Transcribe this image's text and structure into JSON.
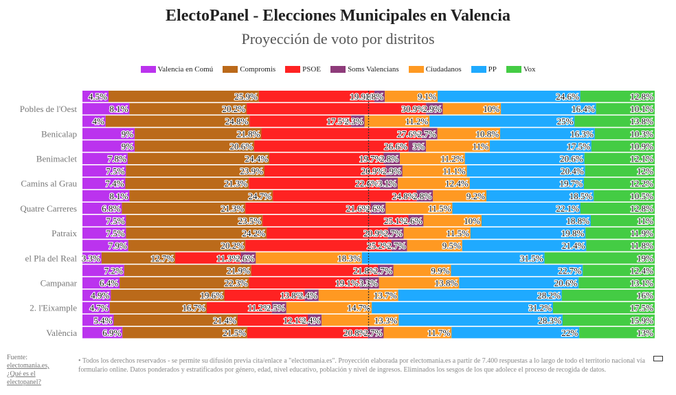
{
  "title": "ElectoPanel - Elecciones Municipales en Valencia",
  "subtitle": "Proyección de voto por distritos",
  "footer": {
    "source_label": "Fuente:",
    "source_link": "electomania.es,",
    "what_link": "¿Qué es el electopanel?",
    "note": "• Todos los derechos reservados - se permite su difusión previa cita/enlace a \"electomania.es\". Proyección elaborada por electomania.es a partir de 7.400 respuestas a lo largo de todo el territorio nacional vía formulario online. Datos ponderados y estratificados por género, edad, nivel educativo, población y nivel de ingresos. Eliminados los sesgos de los que adolece el proceso de recogida de datos."
  },
  "chart_data": {
    "type": "bar",
    "orientation": "horizontal",
    "stacked": true,
    "title": "ElectoPanel - Elecciones Municipales en Valencia",
    "subtitle": "Proyección de voto por distritos",
    "xlim": [
      0,
      100
    ],
    "legend_position": "top",
    "reference_line": {
      "x": 50,
      "style": "dotted"
    },
    "y_tick_labels": [
      "Pobles de l'Oest",
      "Benicalap",
      "Benimaclet",
      "Camins al Grau",
      "Quatre Carreres",
      "Patraix",
      "el Pla del Real",
      "Campanar",
      "2. l'Eixample",
      "València"
    ],
    "rows": [
      "",
      "Pobles de l'Oest",
      "",
      "Benicalap",
      "",
      "Benimaclet",
      "",
      "Camins al Grau",
      "",
      "Quatre Carreres",
      "",
      "Patraix",
      "",
      "el Pla del Real",
      "",
      "Campanar",
      "",
      "2. l'Eixample",
      "",
      "València"
    ],
    "series": [
      {
        "name": "Valencia en Comú",
        "color": "#bb33ee",
        "values": [
          4.5,
          8.1,
          4,
          9,
          9,
          7.8,
          7.5,
          7.4,
          8.1,
          6.8,
          7.5,
          7.5,
          7.9,
          3.3,
          7.2,
          6.4,
          4.9,
          4.7,
          5.4,
          6.9
        ],
        "labels": [
          "4.5%",
          "8.1%",
          "4%",
          "9%",
          "9%",
          "7.8%",
          "7.5%",
          "7.4%",
          "8.1%",
          "6.8%",
          "7.5%",
          "7.5%",
          "7.9%",
          "3.3%",
          "7.2%",
          "6.4%",
          "4.9%",
          "4.7%",
          "5.4%",
          "6.9%"
        ]
      },
      {
        "name": "Compromis",
        "color": "#bb6a1a",
        "values": [
          25.9,
          20.2,
          24.8,
          21.8,
          20.6,
          24.4,
          23.9,
          21.3,
          24.7,
          21.3,
          23.5,
          24.2,
          20.2,
          12.7,
          21.9,
          22.3,
          19.6,
          16.7,
          21.4,
          21.5
        ],
        "labels": [
          "25.9%",
          "20.2%",
          "24.8%",
          "21.8%",
          "20.6%",
          "24.4%",
          "23.9%",
          "21.3%",
          "24.7%",
          "21.3%",
          "23.5%",
          "24.2%",
          "20.2%",
          "12.7%",
          "21.9%",
          "22.3%",
          "19.6%",
          "16.7%",
          "21.4%",
          "21.5%"
        ]
      },
      {
        "name": "PSOE",
        "color": "#ff2222",
        "values": [
          19.9,
          30.9,
          17.5,
          27.6,
          26.6,
          19.7,
          20.9,
          22.6,
          24.8,
          21.6,
          25.1,
          20.9,
          25.2,
          11.3,
          21.8,
          19.1,
          13.8,
          11.2,
          12.1,
          20.8
        ],
        "labels": [
          "19.9%",
          "30.9%",
          "17.5%",
          "27.6%",
          "26.6%",
          "19.7%",
          "20.9%",
          "22.6%",
          "24.8%",
          "21.6%",
          "25.1%",
          "20.9%",
          "25.2%",
          "11.3%",
          "21.8%",
          "19.1%",
          "13.8%",
          "11.2%",
          "12.1%",
          "20.8%"
        ]
      },
      {
        "name": "Soms Valencians",
        "color": "#8e3b7a",
        "values": [
          1.8,
          2.9,
          2.3,
          2.7,
          3,
          2.8,
          2.9,
          3.1,
          2.8,
          2.6,
          2.6,
          2.7,
          2.7,
          2.6,
          2.7,
          3.3,
          2.4,
          2.5,
          2.4,
          2.7
        ],
        "labels": [
          "1.8%",
          "2.9%",
          "2.3%",
          "2.7%",
          "3%",
          "2.8%",
          "2.9%",
          "3.1%",
          "2.8%",
          "2.6%",
          "2.6%",
          "2.7%",
          "2.7%",
          "2.6%",
          "2.7%",
          "3.3%",
          "2.4%",
          "2.5%",
          "2.4%",
          "2.7%"
        ]
      },
      {
        "name": "Ciudadanos",
        "color": "#ff9922",
        "values": [
          9.1,
          10,
          11.2,
          10.8,
          11,
          11.2,
          11.1,
          12.4,
          9.2,
          11.5,
          10,
          11.5,
          9.5,
          18.3,
          9.9,
          13.8,
          13.7,
          14.7,
          13.3,
          11.7
        ],
        "labels": [
          "9.1%",
          "10%",
          "11.2%",
          "10.8%",
          "11%",
          "11.2%",
          "11.1%",
          "12.4%",
          "9.2%",
          "11.5%",
          "10%",
          "11.5%",
          "9.5%",
          "18.3%",
          "9.9%",
          "13.8%",
          "13.7%",
          "14.7%",
          "13.3%",
          "11.7%"
        ]
      },
      {
        "name": "PP",
        "color": "#1faaff",
        "values": [
          24.6,
          16.4,
          25,
          16.3,
          17.5,
          20.6,
          20.4,
          19.7,
          18.5,
          22.1,
          18.8,
          19.8,
          21.4,
          31.5,
          22.7,
          20.6,
          28.2,
          31.2,
          28.3,
          22
        ],
        "labels": [
          "24.6%",
          "16.4%",
          "25%",
          "16.3%",
          "17.5%",
          "20.6%",
          "20.4%",
          "19.7%",
          "18.5%",
          "22.1%",
          "18.8%",
          "19.8%",
          "21.4%",
          "31.5%",
          "22.7%",
          "20.6%",
          "28.2%",
          "31.2%",
          "28.3%",
          "22%"
        ]
      },
      {
        "name": "Vox",
        "color": "#44cc44",
        "values": [
          12.8,
          10.1,
          13.8,
          10.3,
          10.9,
          12.1,
          12,
          12.2,
          10.5,
          12.8,
          11,
          11.9,
          11.8,
          19,
          12.4,
          13.1,
          16,
          17.5,
          15.9,
          13
        ],
        "labels": [
          "12.8%",
          "10.1%",
          "13.8%",
          "10.3%",
          "10.9%",
          "12.1%",
          "12%",
          "12.2%",
          "10.5%",
          "12.8%",
          "11%",
          "11.9%",
          "11.8%",
          "19%",
          "12.4%",
          "13.1%",
          "16%",
          "17.5%",
          "15.9%",
          "13%"
        ]
      }
    ]
  }
}
